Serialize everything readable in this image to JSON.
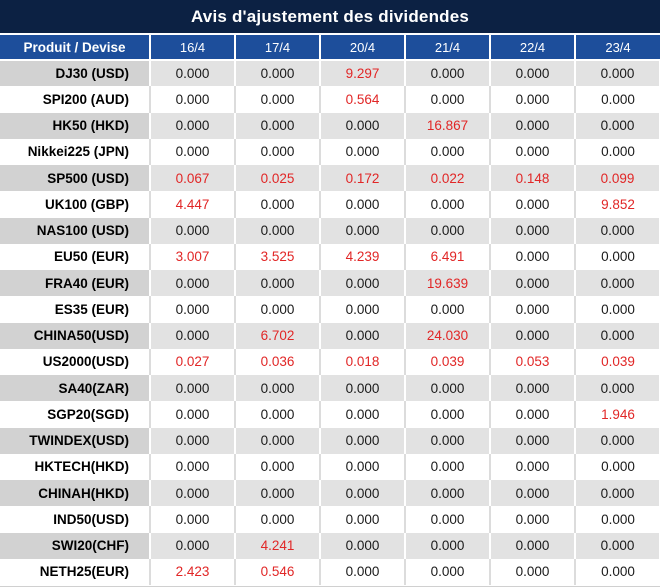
{
  "title_bar": {
    "title": "Avis d'ajustement des dividendes"
  },
  "colors": {
    "title_bg": "#0c2143",
    "header_bg": "#1d4e9b",
    "header_text": "#ffffff",
    "stripe_label_bg": "#d2d2d2",
    "stripe_value_bg": "#e2e2e2",
    "row_bg": "#ffffff",
    "value_text": "#1a1a1a",
    "negative_red": "#e12626"
  },
  "chart_data": {
    "type": "table",
    "title": "Avis d'ajustement des dividendes",
    "columns": [
      "Produit / Devise",
      "16/4",
      "17/4",
      "20/4",
      "21/4",
      "22/4",
      "23/4"
    ],
    "rows": [
      {
        "product": "DJ30 (USD)",
        "values": [
          "0.000",
          "0.000",
          "9.297",
          "0.000",
          "0.000",
          "0.000"
        ],
        "red": [
          false,
          false,
          true,
          false,
          false,
          false
        ]
      },
      {
        "product": "SPI200 (AUD)",
        "values": [
          "0.000",
          "0.000",
          "0.564",
          "0.000",
          "0.000",
          "0.000"
        ],
        "red": [
          false,
          false,
          true,
          false,
          false,
          false
        ]
      },
      {
        "product": "HK50 (HKD)",
        "values": [
          "0.000",
          "0.000",
          "0.000",
          "16.867",
          "0.000",
          "0.000"
        ],
        "red": [
          false,
          false,
          false,
          true,
          false,
          false
        ]
      },
      {
        "product": "Nikkei225 (JPN)",
        "values": [
          "0.000",
          "0.000",
          "0.000",
          "0.000",
          "0.000",
          "0.000"
        ],
        "red": [
          false,
          false,
          false,
          false,
          false,
          false
        ]
      },
      {
        "product": "SP500 (USD)",
        "values": [
          "0.067",
          "0.025",
          "0.172",
          "0.022",
          "0.148",
          "0.099"
        ],
        "red": [
          true,
          true,
          true,
          true,
          true,
          true
        ]
      },
      {
        "product": "UK100 (GBP)",
        "values": [
          "4.447",
          "0.000",
          "0.000",
          "0.000",
          "0.000",
          "9.852"
        ],
        "red": [
          true,
          false,
          false,
          false,
          false,
          true
        ]
      },
      {
        "product": "NAS100 (USD)",
        "values": [
          "0.000",
          "0.000",
          "0.000",
          "0.000",
          "0.000",
          "0.000"
        ],
        "red": [
          false,
          false,
          false,
          false,
          false,
          false
        ]
      },
      {
        "product": "EU50 (EUR)",
        "values": [
          "3.007",
          "3.525",
          "4.239",
          "6.491",
          "0.000",
          "0.000"
        ],
        "red": [
          true,
          true,
          true,
          true,
          false,
          false
        ]
      },
      {
        "product": "FRA40 (EUR)",
        "values": [
          "0.000",
          "0.000",
          "0.000",
          "19.639",
          "0.000",
          "0.000"
        ],
        "red": [
          false,
          false,
          false,
          true,
          false,
          false
        ]
      },
      {
        "product": "ES35 (EUR)",
        "values": [
          "0.000",
          "0.000",
          "0.000",
          "0.000",
          "0.000",
          "0.000"
        ],
        "red": [
          false,
          false,
          false,
          false,
          false,
          false
        ]
      },
      {
        "product": "CHINA50(USD)",
        "values": [
          "0.000",
          "6.702",
          "0.000",
          "24.030",
          "0.000",
          "0.000"
        ],
        "red": [
          false,
          true,
          false,
          true,
          false,
          false
        ]
      },
      {
        "product": "US2000(USD)",
        "values": [
          "0.027",
          "0.036",
          "0.018",
          "0.039",
          "0.053",
          "0.039"
        ],
        "red": [
          true,
          true,
          true,
          true,
          true,
          true
        ]
      },
      {
        "product": "SA40(ZAR)",
        "values": [
          "0.000",
          "0.000",
          "0.000",
          "0.000",
          "0.000",
          "0.000"
        ],
        "red": [
          false,
          false,
          false,
          false,
          false,
          false
        ]
      },
      {
        "product": "SGP20(SGD)",
        "values": [
          "0.000",
          "0.000",
          "0.000",
          "0.000",
          "0.000",
          "1.946"
        ],
        "red": [
          false,
          false,
          false,
          false,
          false,
          true
        ]
      },
      {
        "product": "TWINDEX(USD)",
        "values": [
          "0.000",
          "0.000",
          "0.000",
          "0.000",
          "0.000",
          "0.000"
        ],
        "red": [
          false,
          false,
          false,
          false,
          false,
          false
        ]
      },
      {
        "product": "HKTECH(HKD)",
        "values": [
          "0.000",
          "0.000",
          "0.000",
          "0.000",
          "0.000",
          "0.000"
        ],
        "red": [
          false,
          false,
          false,
          false,
          false,
          false
        ]
      },
      {
        "product": "CHINAH(HKD)",
        "values": [
          "0.000",
          "0.000",
          "0.000",
          "0.000",
          "0.000",
          "0.000"
        ],
        "red": [
          false,
          false,
          false,
          false,
          false,
          false
        ]
      },
      {
        "product": "IND50(USD)",
        "values": [
          "0.000",
          "0.000",
          "0.000",
          "0.000",
          "0.000",
          "0.000"
        ],
        "red": [
          false,
          false,
          false,
          false,
          false,
          false
        ]
      },
      {
        "product": "SWI20(CHF)",
        "values": [
          "0.000",
          "4.241",
          "0.000",
          "0.000",
          "0.000",
          "0.000"
        ],
        "red": [
          false,
          true,
          false,
          false,
          false,
          false
        ]
      },
      {
        "product": "NETH25(EUR)",
        "values": [
          "2.423",
          "0.546",
          "0.000",
          "0.000",
          "0.000",
          "0.000"
        ],
        "red": [
          true,
          true,
          false,
          false,
          false,
          false
        ]
      }
    ]
  }
}
